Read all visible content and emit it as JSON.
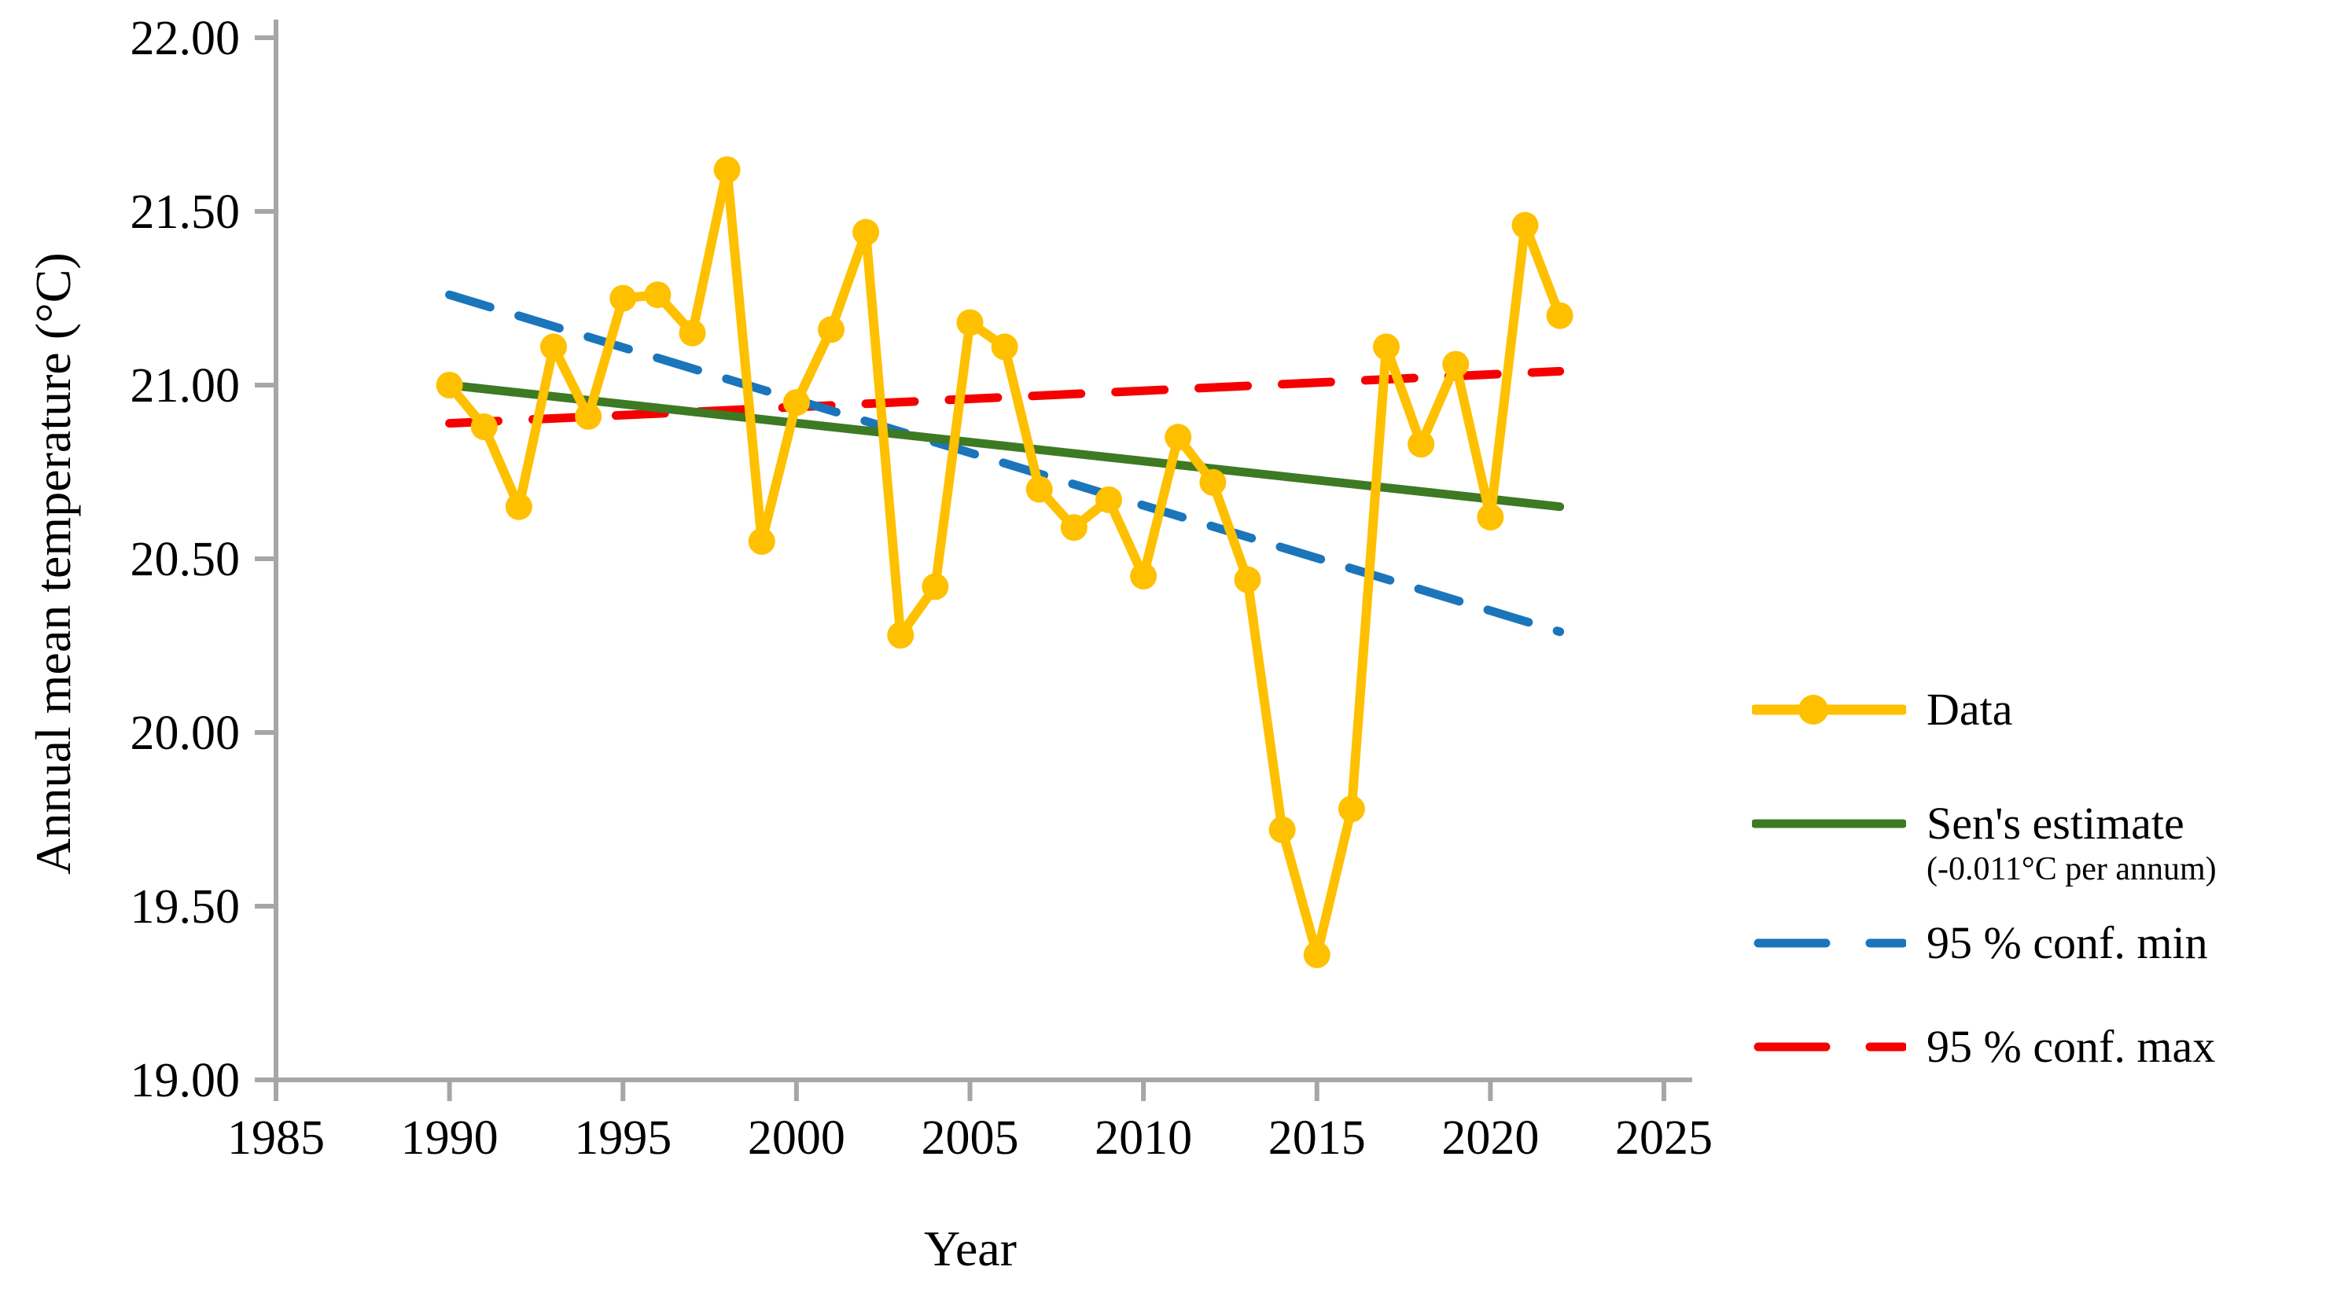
{
  "axes": {
    "x_title": "Year",
    "y_title": "Annual mean temperature (°C)",
    "x_tick_labels": [
      "1985",
      "1990",
      "1995",
      "2000",
      "2005",
      "2010",
      "2015",
      "2020",
      "2025"
    ],
    "y_tick_labels": [
      "22.00",
      "21.50",
      "21.00",
      "20.50",
      "20.00",
      "19.50",
      "19.00"
    ],
    "axis_color": "#A6A6A6"
  },
  "legend": {
    "items": [
      {
        "label": "Data",
        "sublabel": "",
        "color": "#FFC000",
        "style": "line-marker"
      },
      {
        "label": "Sen's estimate",
        "sublabel": "(-0.011°C per annum)",
        "color": "#3D7A23",
        "style": "solid"
      },
      {
        "label": "95 % conf. min",
        "sublabel": "",
        "color": "#1B75BB",
        "style": "dashed"
      },
      {
        "label": "95 % conf. max",
        "sublabel": "",
        "color": "#F40000",
        "style": "dashed"
      }
    ]
  },
  "chart_data": {
    "type": "line",
    "title": "",
    "xlabel": "Year",
    "ylabel": "Annual mean temperature (°C)",
    "xlim": [
      1985,
      2025
    ],
    "ylim": [
      19.0,
      22.0
    ],
    "x_ticks": [
      1985,
      1990,
      1995,
      2000,
      2005,
      2010,
      2015,
      2020,
      2025
    ],
    "y_ticks": [
      22.0,
      21.5,
      21.0,
      20.5,
      20.0,
      19.5,
      19.0
    ],
    "grid": false,
    "legend_position": "right",
    "x": [
      1990,
      1991,
      1992,
      1993,
      1994,
      1995,
      1996,
      1997,
      1998,
      1999,
      2000,
      2001,
      2002,
      2003,
      2004,
      2005,
      2006,
      2007,
      2008,
      2009,
      2010,
      2011,
      2012,
      2013,
      2014,
      2015,
      2016,
      2017,
      2018,
      2019,
      2020,
      2021,
      2022
    ],
    "series": [
      {
        "name": "Data",
        "style": "line-markers",
        "color": "#FFC000",
        "values": [
          21.0,
          20.88,
          20.65,
          21.11,
          20.91,
          21.25,
          21.26,
          21.15,
          21.62,
          20.55,
          20.95,
          21.16,
          21.44,
          20.28,
          20.42,
          21.18,
          21.11,
          20.7,
          20.59,
          20.67,
          20.45,
          20.85,
          20.72,
          20.44,
          19.72,
          19.36,
          19.78,
          21.11,
          20.83,
          21.06,
          20.62,
          21.46,
          21.2
        ]
      },
      {
        "name": "Sen's estimate",
        "style": "solid",
        "color": "#3D7A23",
        "slope_per_annum": -0.011,
        "x": [
          1990,
          2022
        ],
        "values": [
          21.0,
          20.65
        ]
      },
      {
        "name": "95 % conf. min",
        "style": "dashed",
        "color": "#1B75BB",
        "x": [
          1990,
          2022
        ],
        "values": [
          21.26,
          20.29
        ]
      },
      {
        "name": "95 % conf. max",
        "style": "dashed",
        "color": "#F40000",
        "x": [
          1990,
          2022
        ],
        "values": [
          20.89,
          21.04
        ]
      }
    ]
  }
}
